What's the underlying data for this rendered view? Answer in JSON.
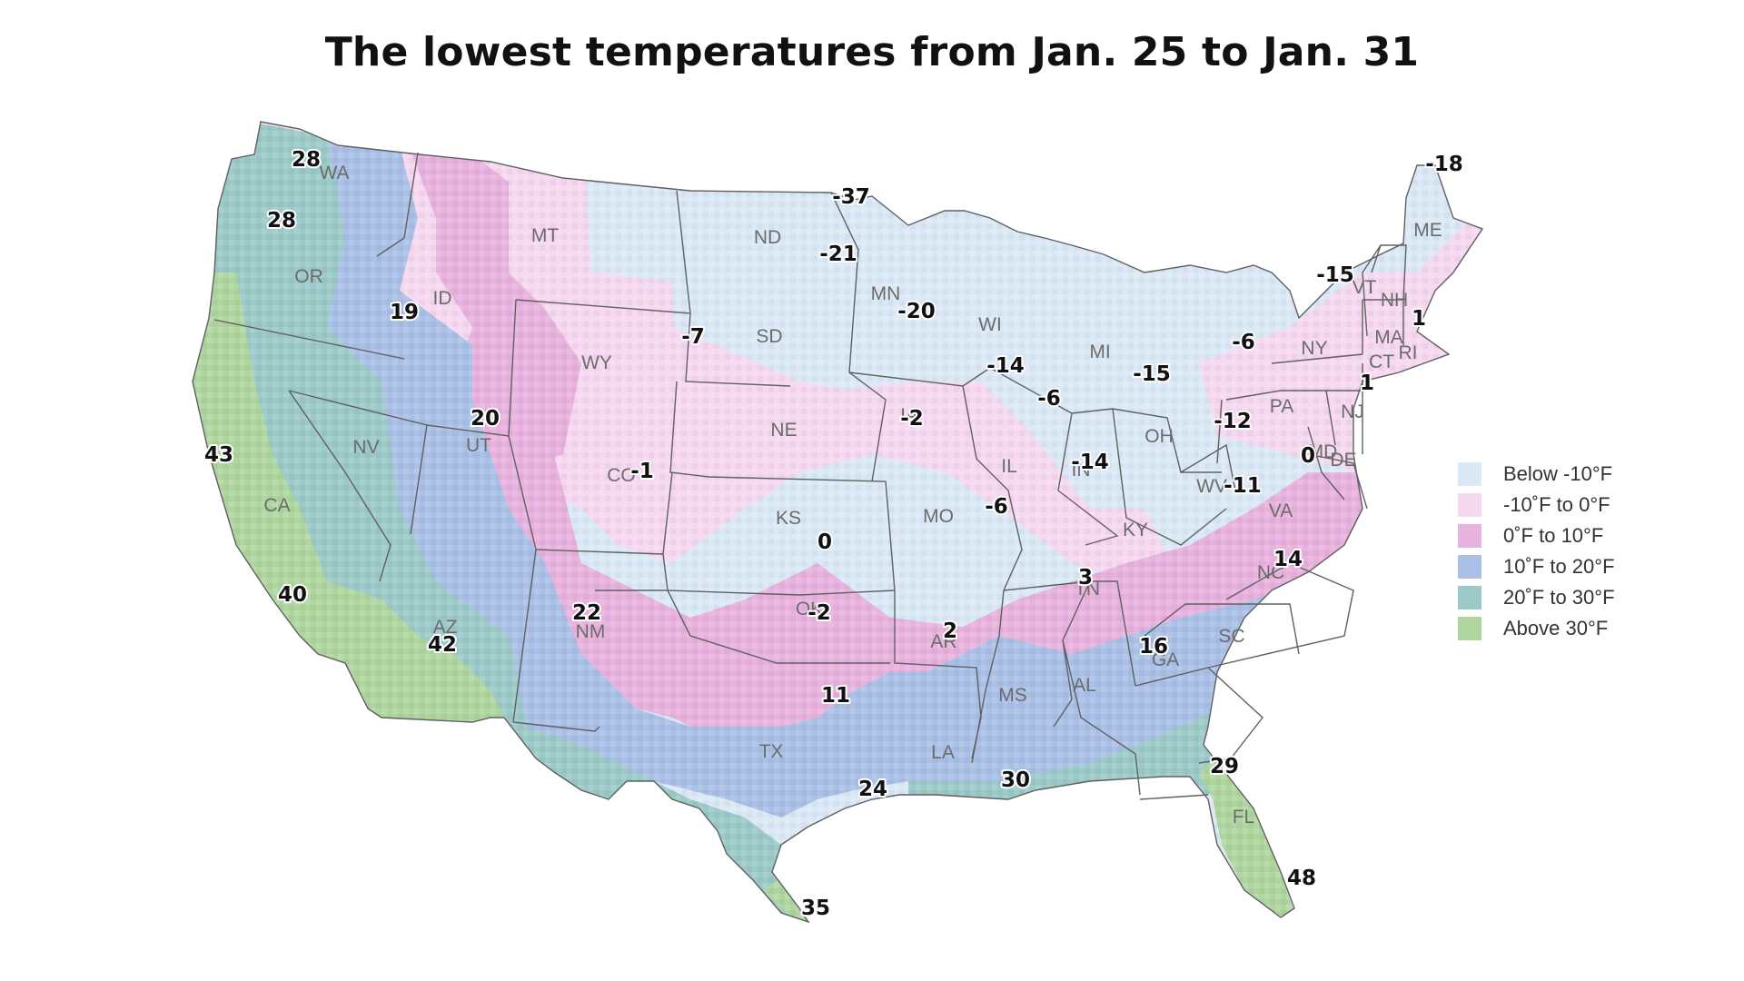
{
  "title": "The lowest temperatures from Jan. 25 to Jan. 31",
  "colors": {
    "below_m10": "#dbe8f6",
    "m10_0": "#f6d8f0",
    "p0_10": "#e8b2de",
    "p10_20": "#aac0e6",
    "p20_30": "#9ccac8",
    "above30": "#b0d6a0",
    "border": "#606060"
  },
  "legend": [
    {
      "label": "Below -10°F",
      "color": "#dbe8f6"
    },
    {
      "label": "-10˚F to 0°F",
      "color": "#f6d8f0"
    },
    {
      "label": "0˚F to 10°F",
      "color": "#e8b2de"
    },
    {
      "label": "10˚F to 20°F",
      "color": "#aac0e6"
    },
    {
      "label": "20˚F to 30°F",
      "color": "#9ccac8"
    },
    {
      "label": "Above 30°F",
      "color": "#b0d6a0"
    }
  ],
  "states": [
    "WA",
    "OR",
    "CA",
    "ID",
    "NV",
    "MT",
    "WY",
    "UT",
    "AZ",
    "CO",
    "NM",
    "ND",
    "SD",
    "NE",
    "KS",
    "OK",
    "TX",
    "MN",
    "IA",
    "MO",
    "AR",
    "LA",
    "WI",
    "IL",
    "MI",
    "IN",
    "OH",
    "KY",
    "TN",
    "MS",
    "AL",
    "GA",
    "FL",
    "SC",
    "NC",
    "VA",
    "WV",
    "PA",
    "NY",
    "VT",
    "NH",
    "ME",
    "MA",
    "CT",
    "RI",
    "NJ",
    "DE",
    "MD"
  ],
  "temperatures": [
    "28",
    "28",
    "19",
    "43",
    "40",
    "42",
    "20",
    "22",
    "-1",
    "-7",
    "-37",
    "-21",
    "-20",
    "-2",
    "0",
    "-2",
    "11",
    "24",
    "35",
    "2",
    "30",
    "-14",
    "-6",
    "-6",
    "-14",
    "-15",
    "-11",
    "3",
    "16",
    "14",
    "29",
    "48",
    "-12",
    "-6",
    "-15",
    "-18",
    "1",
    "1",
    "0"
  ]
}
